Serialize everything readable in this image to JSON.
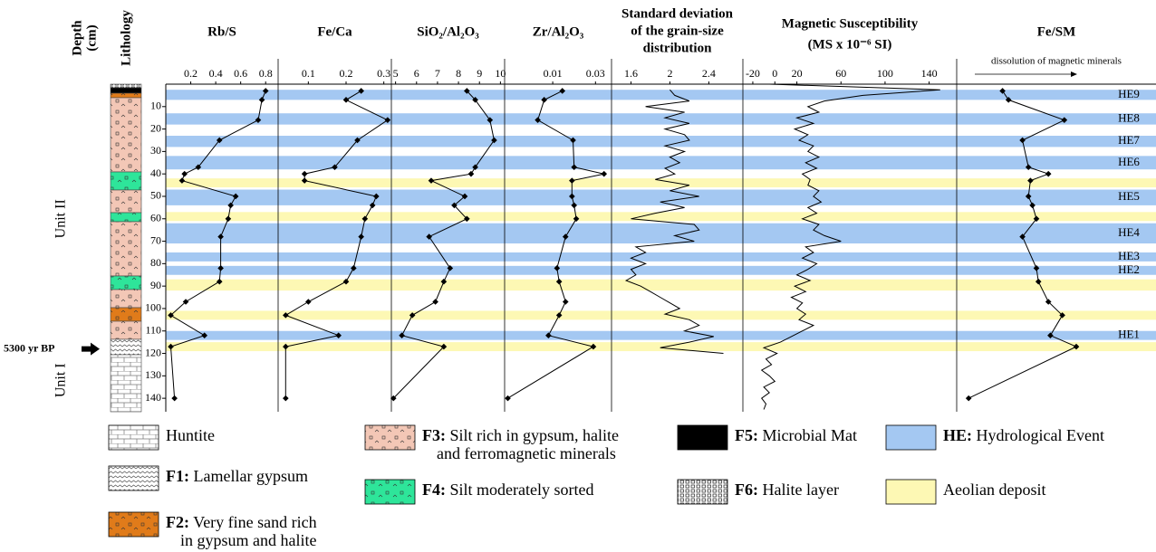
{
  "depth_axis": {
    "label": [
      "Depth",
      "(cm)"
    ],
    "ylim": [
      0,
      146
    ],
    "yticks": [
      10,
      20,
      30,
      40,
      50,
      60,
      70,
      80,
      90,
      100,
      110,
      120,
      130,
      140
    ]
  },
  "lithology": {
    "title": "Lithology",
    "units": [
      {
        "label": "Unit II",
        "depth": 60
      },
      {
        "label": "Unit I",
        "depth": 132
      }
    ],
    "marker": {
      "label": "5300 yr BP",
      "depth": 118
    }
  },
  "bands": {
    "he": {
      "color": "#a4c8f2",
      "items": [
        {
          "label": "HE9",
          "range": [
            2.5,
            7
          ]
        },
        {
          "label": "HE8",
          "range": [
            13,
            18
          ]
        },
        {
          "label": "HE7",
          "range": [
            23,
            28
          ]
        },
        {
          "label": "HE6",
          "range": [
            32,
            38
          ]
        },
        {
          "label": "HE5",
          "range": [
            47,
            54
          ]
        },
        {
          "label": "HE4",
          "range": [
            62,
            71
          ]
        },
        {
          "label": "HE3",
          "range": [
            75,
            79
          ]
        },
        {
          "label": "HE2",
          "range": [
            81,
            85
          ]
        },
        {
          "label": "HE1",
          "range": [
            110,
            114
          ]
        }
      ]
    },
    "aeolian": {
      "color": "#fdf8b4",
      "items": [
        {
          "range": [
            42,
            46
          ]
        },
        {
          "range": [
            57,
            61
          ]
        },
        {
          "range": [
            87,
            92
          ]
        },
        {
          "range": [
            101,
            105
          ]
        },
        {
          "range": [
            115,
            119
          ]
        }
      ]
    }
  },
  "chart_data": [
    {
      "type": "line",
      "title": "Rb/S",
      "markers": true,
      "color": "#000000",
      "xlim": [
        0,
        0.9
      ],
      "xticks": [
        0.2,
        0.4,
        0.6,
        0.8
      ],
      "depth": [
        3,
        7,
        16,
        25,
        37,
        40,
        43,
        50,
        54,
        60,
        68,
        82,
        88,
        97,
        103,
        112,
        117,
        140
      ],
      "values": [
        0.8,
        0.77,
        0.74,
        0.43,
        0.26,
        0.15,
        0.13,
        0.56,
        0.52,
        0.5,
        0.44,
        0.44,
        0.43,
        0.16,
        0.04,
        0.31,
        0.04,
        0.07
      ]
    },
    {
      "type": "line",
      "title": "Fe/Ca",
      "markers": true,
      "color": "#000000",
      "xlim": [
        0.02,
        0.32
      ],
      "xticks": [
        0.1,
        0.2,
        0.3
      ],
      "depth": [
        3,
        7,
        16,
        25,
        37,
        40,
        43,
        50,
        54,
        60,
        68,
        82,
        88,
        97,
        103,
        112,
        117,
        140
      ],
      "values": [
        0.24,
        0.2,
        0.31,
        0.23,
        0.17,
        0.09,
        0.09,
        0.28,
        0.27,
        0.25,
        0.24,
        0.22,
        0.2,
        0.1,
        0.04,
        0.18,
        0.04,
        0.04
      ]
    },
    {
      "type": "line",
      "title": "SiO₂/Al₂O₃",
      "markers": true,
      "color": "#000000",
      "xlim": [
        4.8,
        10.2
      ],
      "xticks": [
        5,
        6,
        7,
        8,
        9,
        10
      ],
      "depth": [
        3,
        7,
        16,
        25,
        37,
        40,
        43,
        50,
        54,
        60,
        68,
        82,
        88,
        97,
        103,
        112,
        117,
        140
      ],
      "values": [
        8.4,
        8.8,
        9.5,
        9.7,
        8.8,
        8.6,
        6.7,
        8.3,
        7.8,
        8.4,
        6.6,
        7.6,
        7.3,
        6.9,
        5.8,
        5.3,
        7.3,
        4.9
      ]
    },
    {
      "type": "line",
      "title": "Zr/Al₂O₃",
      "markers": true,
      "color": "#000000",
      "xlim": [
        -0.0125,
        0.0375
      ],
      "xticks": [
        0.01,
        0.03
      ],
      "depth": [
        3,
        7,
        16,
        25,
        37,
        40,
        43,
        50,
        54,
        60,
        68,
        82,
        88,
        97,
        103,
        112,
        117,
        140
      ],
      "values": [
        0.0145,
        0.006,
        0.003,
        0.0195,
        0.02,
        0.034,
        0.019,
        0.019,
        0.02,
        0.021,
        0.016,
        0.012,
        0.013,
        0.016,
        0.013,
        0.008,
        0.029,
        -0.011
      ]
    },
    {
      "type": "line",
      "title": [
        "Standard deviation",
        "of the grain-size",
        "distribution"
      ],
      "markers": false,
      "color": "#000000",
      "xlim": [
        1.4,
        2.75
      ],
      "xticks": [
        1.6,
        2,
        2.4
      ],
      "depth": [
        2.5,
        5,
        7.5,
        10,
        12.5,
        15,
        17.5,
        20,
        22.5,
        25,
        27.5,
        30,
        32.5,
        35,
        37.5,
        40,
        42.5,
        45,
        47.5,
        50,
        52.5,
        55,
        57.5,
        60,
        62.5,
        65,
        67.5,
        70,
        72.5,
        75,
        77.5,
        80,
        82.5,
        85,
        87.5,
        90,
        92.5,
        95,
        97.5,
        100,
        102.5,
        105,
        107.5,
        110,
        112.5,
        115,
        117.5,
        120
      ],
      "values": [
        2.0,
        2.05,
        2.2,
        1.75,
        2.15,
        1.95,
        2.2,
        1.95,
        2.15,
        2.2,
        1.95,
        2.15,
        2.0,
        2.1,
        1.95,
        2.05,
        1.85,
        2.2,
        2.0,
        2.3,
        1.9,
        2.15,
        1.85,
        1.6,
        2.25,
        2.3,
        2.05,
        2.25,
        1.65,
        1.75,
        1.6,
        1.75,
        1.6,
        1.65,
        1.55,
        1.7,
        1.8,
        1.9,
        2.0,
        2.1,
        1.95,
        2.2,
        2.3,
        2.15,
        2.45,
        2.2,
        1.9,
        2.55
      ]
    },
    {
      "type": "line",
      "title": [
        "Magnetic Susceptibility",
        "(MS x 10⁻⁶ SI)"
      ],
      "markers": false,
      "color": "#000000",
      "xlim": [
        -29,
        165
      ],
      "xticks": [
        -20,
        0,
        20,
        60,
        100,
        140
      ],
      "depth": [
        0,
        2.5,
        5,
        7.5,
        10,
        12.5,
        15,
        17.5,
        20,
        22.5,
        25,
        27.5,
        30,
        32.5,
        35,
        37.5,
        40,
        42.5,
        45,
        47.5,
        50,
        52.5,
        55,
        57.5,
        60,
        62.5,
        65,
        67.5,
        70,
        72.5,
        75,
        77.5,
        80,
        82.5,
        85,
        87.5,
        90,
        92.5,
        95,
        97.5,
        100,
        102.5,
        105,
        107.5,
        110,
        112.5,
        115,
        117.5,
        120,
        122.5,
        125,
        127.5,
        130,
        132.5,
        135,
        137.5,
        140,
        142.5,
        145
      ],
      "values": [
        -5,
        150,
        80,
        45,
        30,
        40,
        20,
        35,
        18,
        30,
        22,
        35,
        30,
        40,
        28,
        38,
        25,
        32,
        30,
        40,
        35,
        42,
        30,
        38,
        25,
        40,
        35,
        45,
        60,
        28,
        35,
        25,
        38,
        30,
        20,
        32,
        18,
        28,
        15,
        25,
        20,
        28,
        22,
        35,
        25,
        15,
        5,
        -10,
        2,
        -8,
        -3,
        -12,
        -5,
        0,
        -10,
        -5,
        -12,
        -8,
        -10
      ]
    },
    {
      "type": "line",
      "title": "Fe/SM",
      "subtitle": "dissolution of magnetic minerals",
      "markers": true,
      "color": "#000000",
      "xlim": [
        0,
        1
      ],
      "depth": [
        3,
        7,
        16,
        25,
        37,
        40,
        43,
        50,
        54,
        60,
        68,
        82,
        88,
        97,
        103,
        112,
        117,
        140
      ],
      "values": [
        0.23,
        0.26,
        0.54,
        0.33,
        0.36,
        0.46,
        0.37,
        0.36,
        0.38,
        0.4,
        0.33,
        0.4,
        0.41,
        0.46,
        0.53,
        0.47,
        0.6,
        0.06
      ]
    }
  ],
  "legend": [
    {
      "label": [
        "Huntite"
      ]
    },
    {
      "code": "F1:",
      "label": [
        "Lamellar gypsum"
      ]
    },
    {
      "code": "F2:",
      "label": [
        "Very fine sand rich",
        "in gypsum and halite"
      ]
    },
    {
      "code": "F3:",
      "label": [
        "Silt rich in gypsum, halite",
        "and ferromagnetic minerals"
      ]
    },
    {
      "code": "F4:",
      "label": [
        "Silt moderately sorted"
      ]
    },
    {
      "code": "F5:",
      "label": [
        "Microbial Mat"
      ]
    },
    {
      "code": "F6:",
      "label": [
        "Halite layer"
      ]
    },
    {
      "code": "HE:",
      "label": [
        "Hydrological Event"
      ]
    },
    {
      "label": [
        "Aeolian deposit"
      ]
    }
  ]
}
